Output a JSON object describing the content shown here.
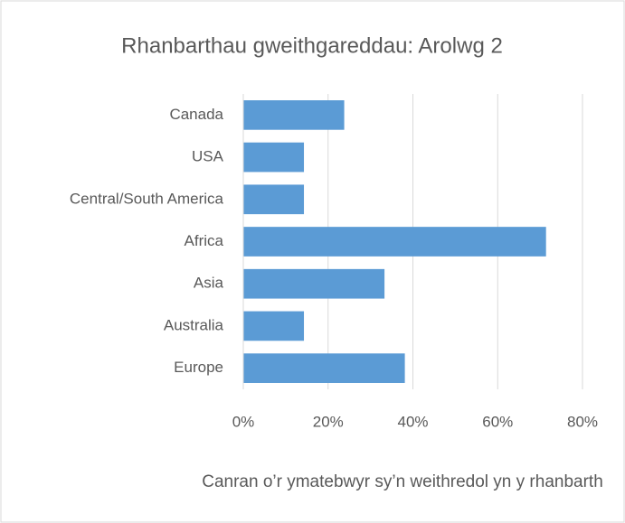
{
  "chart_data": {
    "type": "bar",
    "orientation": "horizontal",
    "title": "Rhanbarthau gweithgareddau: Arolwg 2",
    "x_axis_label": "Canran o’r ymatebwyr sy’n weithredol yn y rhanbarth",
    "categories": [
      "Canada",
      "USA",
      "Central/South America",
      "Africa",
      "Asia",
      "Australia",
      "Europe"
    ],
    "values": [
      23.8,
      14.3,
      14.3,
      71.4,
      33.3,
      14.3,
      38.1
    ],
    "color": "#5b9bd5",
    "xlim": [
      0,
      80
    ],
    "xticks": [
      {
        "value": 0,
        "label": "0%"
      },
      {
        "value": 20,
        "label": "20%"
      },
      {
        "value": 40,
        "label": "40%"
      },
      {
        "value": 60,
        "label": "60%"
      },
      {
        "value": 80,
        "label": "80%"
      }
    ],
    "grid": true
  }
}
